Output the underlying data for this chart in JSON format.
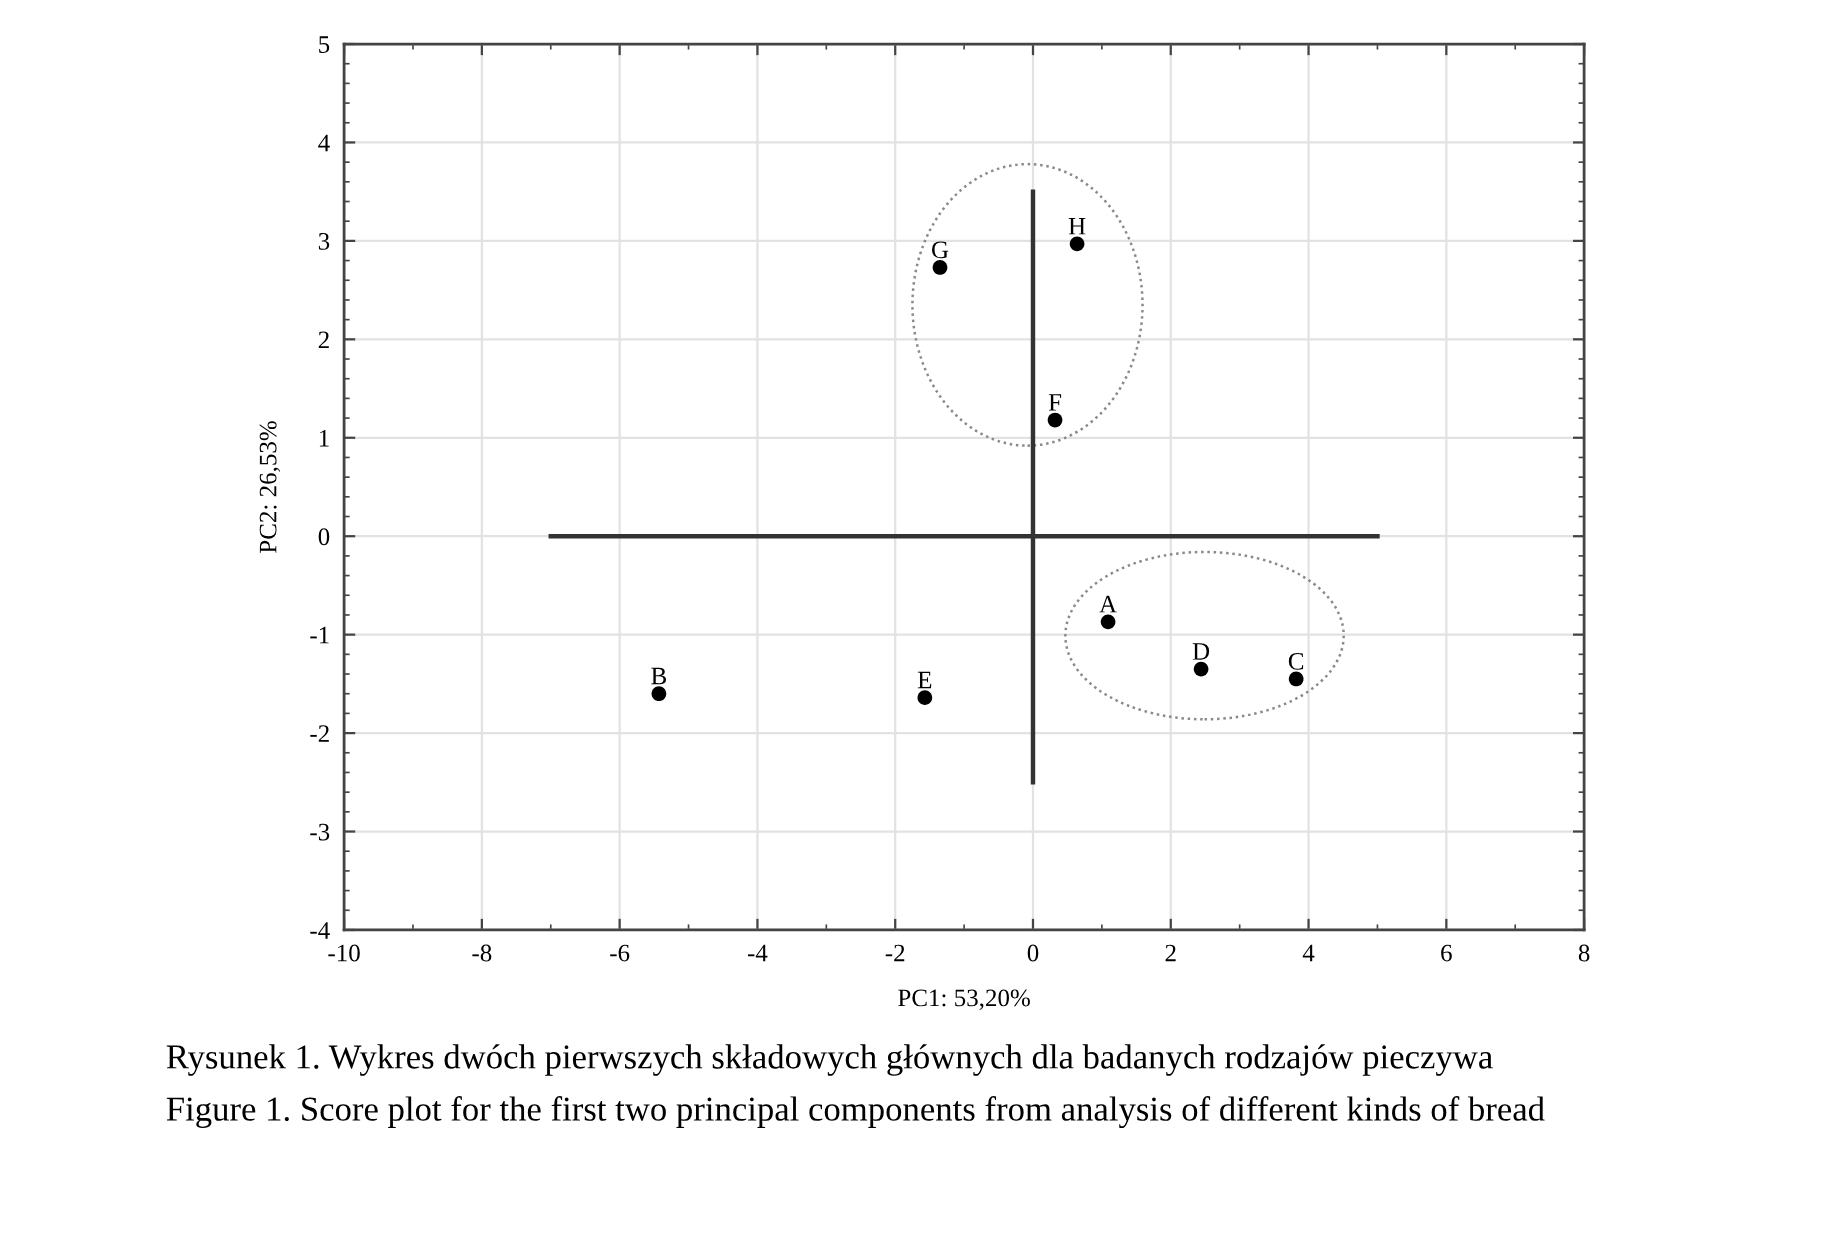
{
  "chart_data": {
    "type": "scatter",
    "xlabel": "PC1: 53,20%",
    "ylabel": "PC2: 26,53%",
    "xlim": [
      -10,
      8
    ],
    "ylim": [
      -4,
      5
    ],
    "xticks": [
      -10,
      {
        "value": -9,
        "label": null
      },
      -8,
      {
        "value": -7,
        "label": null
      },
      -6,
      {
        "value": -5,
        "label": null
      },
      -4,
      {
        "value": -3,
        "label": null
      },
      -2,
      {
        "value": -1,
        "label": null
      },
      0,
      {
        "value": 1,
        "label": null
      },
      2,
      {
        "value": 3,
        "label": null
      },
      4,
      {
        "value": 5,
        "label": null
      },
      6,
      {
        "value": 7,
        "label": null
      },
      8
    ],
    "yticks": [
      -4,
      {
        "value": -3.8,
        "label": null
      },
      {
        "value": -3.6,
        "label": null
      },
      {
        "value": -3.4,
        "label": null
      },
      {
        "value": -3.2,
        "label": null
      },
      -3,
      {
        "value": -2.8,
        "label": null
      },
      {
        "value": -2.6,
        "label": null
      },
      {
        "value": -2.4,
        "label": null
      },
      {
        "value": -2.2,
        "label": null
      },
      -2,
      {
        "value": -1.8,
        "label": null
      },
      {
        "value": -1.6,
        "label": null
      },
      {
        "value": -1.4,
        "label": null
      },
      {
        "value": -1.2,
        "label": null
      },
      -1,
      {
        "value": -0.8,
        "label": null
      },
      {
        "value": -0.6,
        "label": null
      },
      {
        "value": -0.4,
        "label": null
      },
      {
        "value": -0.2,
        "label": null
      },
      0,
      {
        "value": 0.2,
        "label": null
      },
      {
        "value": 0.4,
        "label": null
      },
      {
        "value": 0.6,
        "label": null
      },
      {
        "value": 0.8,
        "label": null
      },
      1,
      {
        "value": 1.2,
        "label": null
      },
      {
        "value": 1.4,
        "label": null
      },
      {
        "value": 1.6,
        "label": null
      },
      {
        "value": 1.8,
        "label": null
      },
      2,
      {
        "value": 2.2,
        "label": null
      },
      {
        "value": 2.4,
        "label": null
      },
      {
        "value": 2.6,
        "label": null
      },
      {
        "value": 2.8,
        "label": null
      },
      3,
      {
        "value": 3.2,
        "label": null
      },
      {
        "value": 3.4,
        "label": null
      },
      {
        "value": 3.6,
        "label": null
      },
      {
        "value": 3.8,
        "label": null
      },
      4,
      {
        "value": 4.2,
        "label": null
      },
      {
        "value": 4.4,
        "label": null
      },
      {
        "value": 4.6,
        "label": null
      },
      {
        "value": 4.8,
        "label": null
      },
      5
    ],
    "grid": true,
    "series": [
      {
        "type": "line",
        "color": "#333333",
        "line_style": "solid",
        "marker": "none",
        "x": [
          -7,
          5
        ],
        "values": [
          0,
          0
        ]
      },
      {
        "type": "line",
        "color": "#333333",
        "line_style": "solid",
        "marker": "none",
        "x": [
          0,
          0
        ],
        "values": [
          3.5,
          -2.5
        ]
      },
      {
        "color": "#000000",
        "marker": "circle",
        "x": [
          1.09,
          -5.43,
          3.82,
          2.44,
          -1.57,
          0.32,
          -1.35,
          0.64
        ],
        "values": [
          -0.87,
          -1.6,
          -1.45,
          -1.35,
          -1.64,
          1.18,
          2.73,
          2.97
        ]
      }
    ],
    "annotations": [
      {
        "text": "A",
        "x": 1.09,
        "y": -0.87
      },
      {
        "text": "B",
        "x": -5.43,
        "y": -1.6
      },
      {
        "text": "C",
        "x": 3.82,
        "y": -1.45
      },
      {
        "text": "D",
        "x": 2.44,
        "y": -1.35
      },
      {
        "text": "E",
        "x": -1.57,
        "y": -1.64
      },
      {
        "text": "F",
        "x": 0.32,
        "y": 1.18
      },
      {
        "text": "G",
        "x": -1.35,
        "y": 2.73
      },
      {
        "text": "H",
        "x": 0.64,
        "y": 2.97
      },
      "Rysunek 1. Wykres dwóch pierwszych składowych głównych dla badanych rodzajów pieczywa",
      "Figure 1. Score plot for the first two principal components from analysis of different kinds of bread"
    ]
  }
}
